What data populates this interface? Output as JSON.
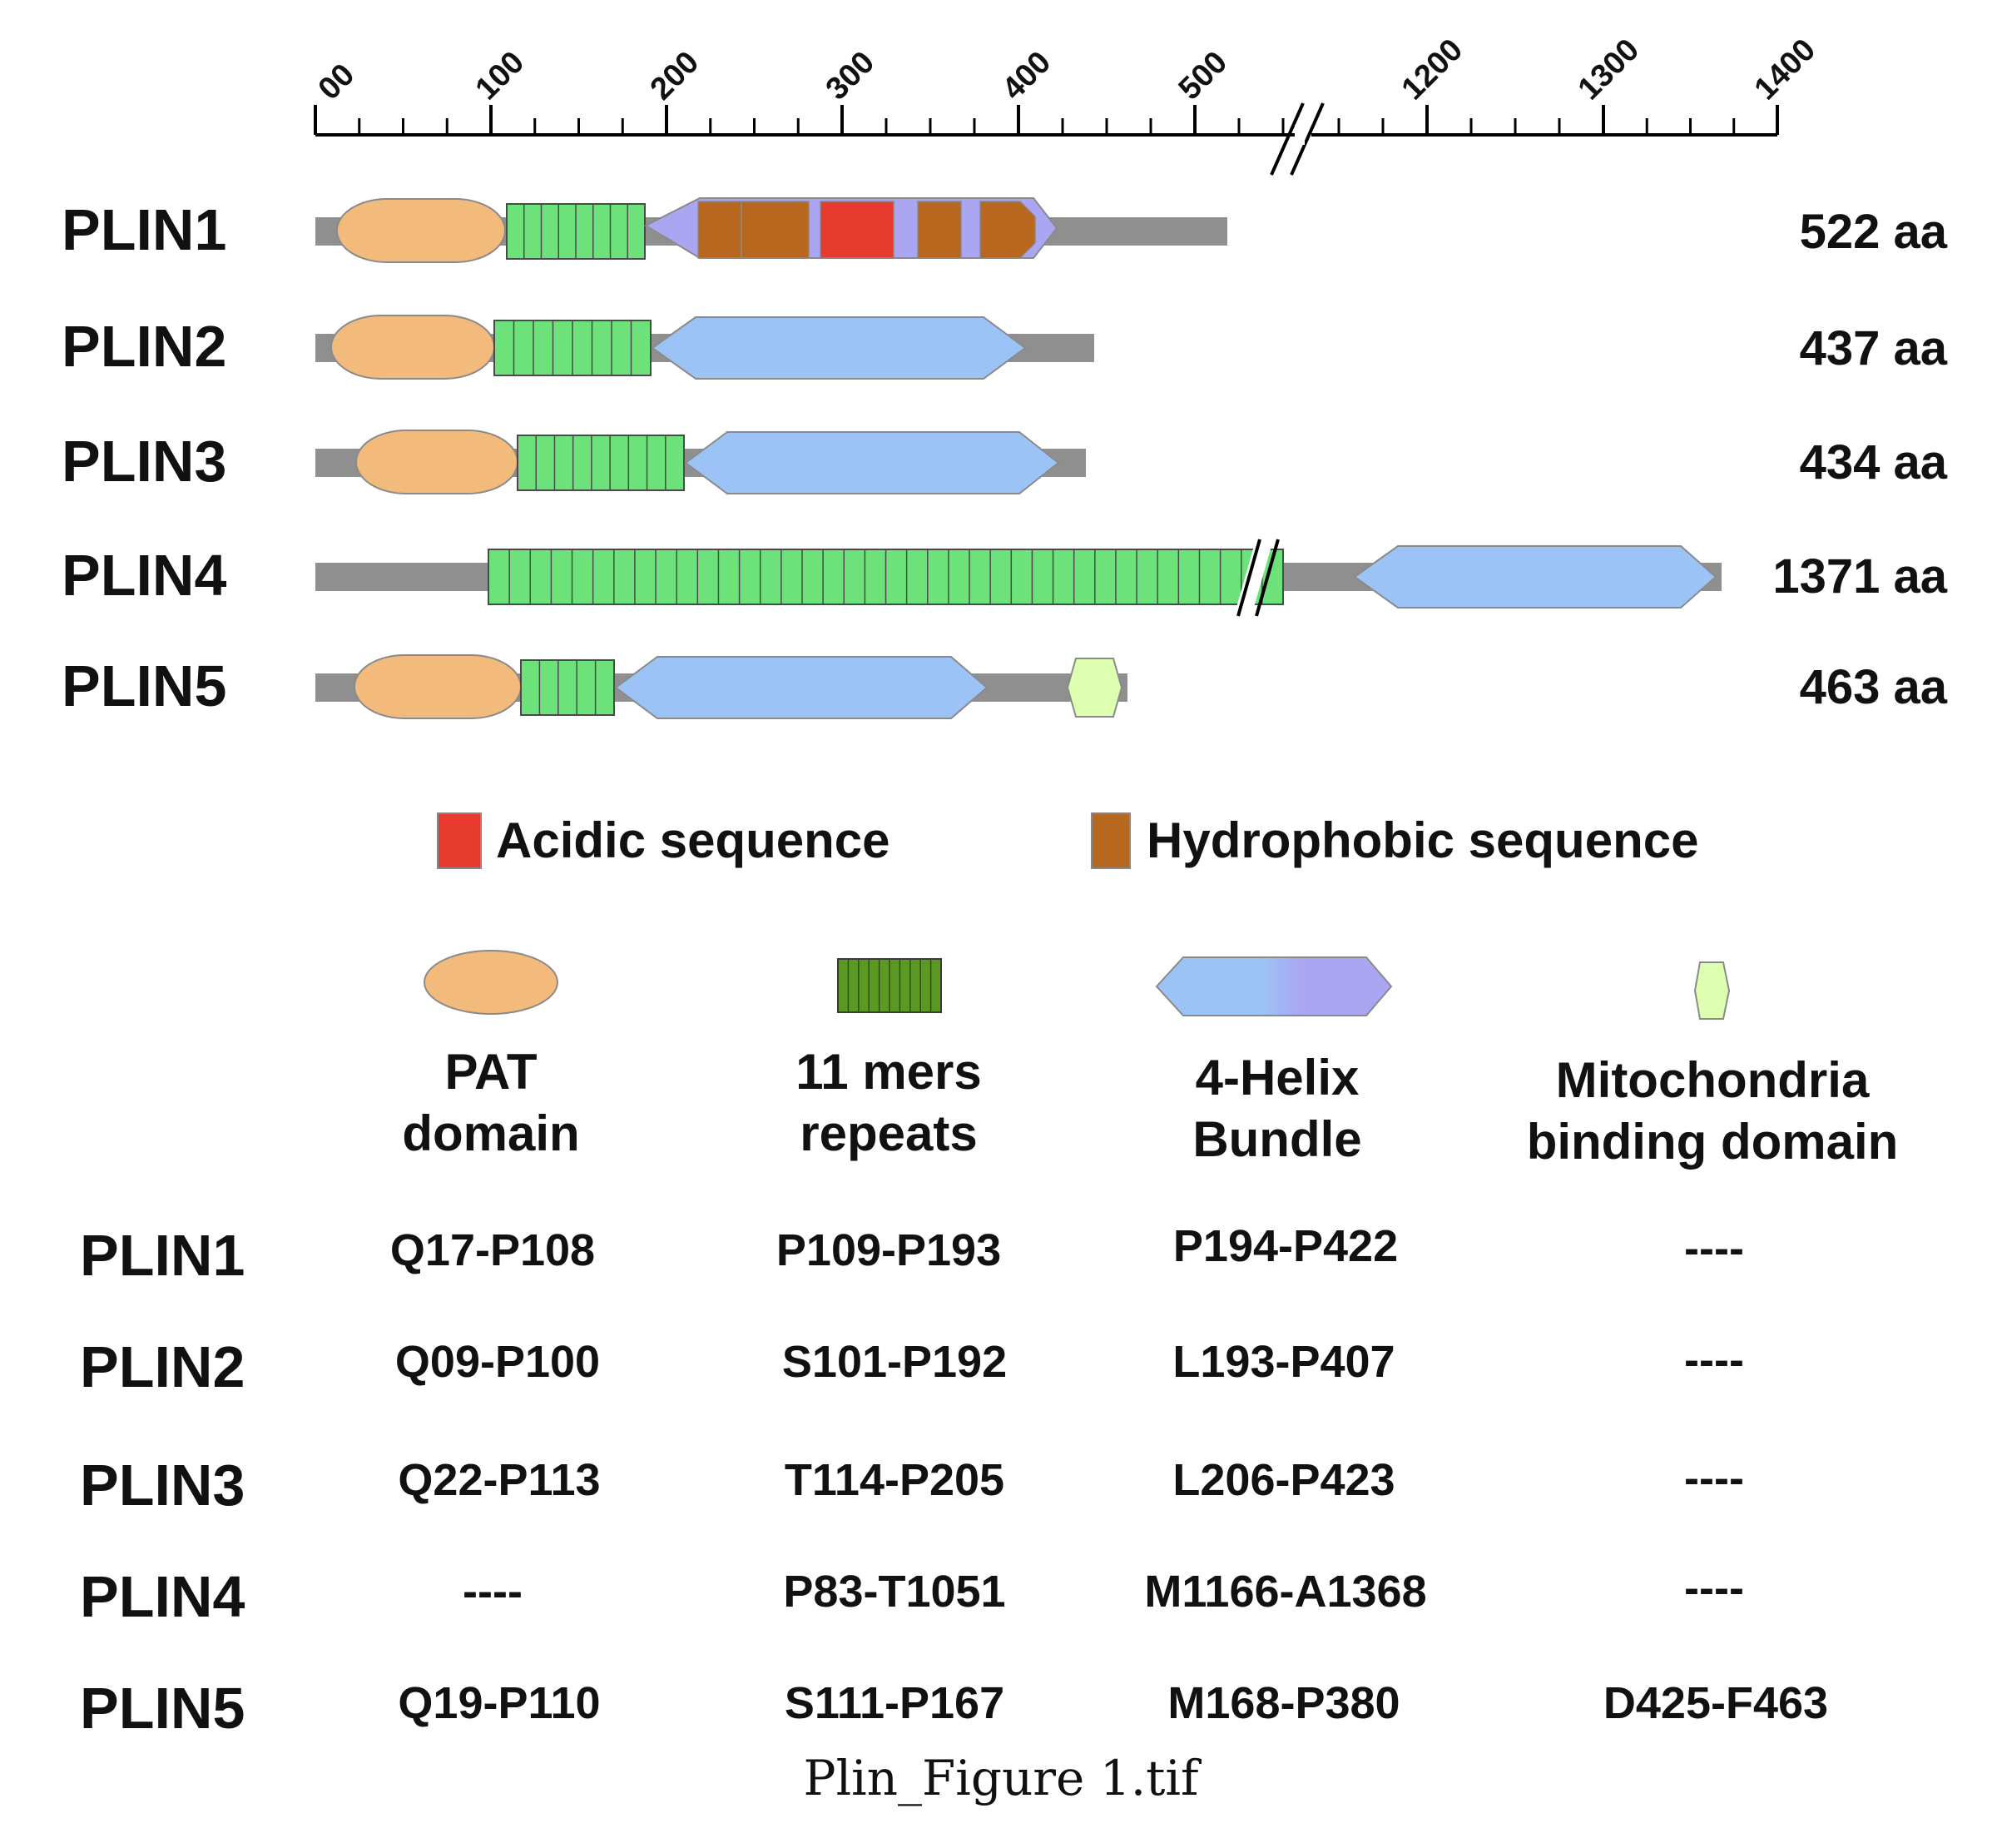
{
  "axis": {
    "ticks_left": [
      "00",
      "100",
      "200",
      "300",
      "400",
      "500"
    ],
    "ticks_right": [
      "1200",
      "1300",
      "1400"
    ]
  },
  "proteins": [
    {
      "name": "PLIN1",
      "length_label": "522 aa",
      "length": 522
    },
    {
      "name": "PLIN2",
      "length_label": "437 aa",
      "length": 437
    },
    {
      "name": "PLIN3",
      "length_label": "434 aa",
      "length": 434
    },
    {
      "name": "PLIN4",
      "length_label": "1371 aa",
      "length": 1371
    },
    {
      "name": "PLIN5",
      "length_label": "463 aa",
      "length": 463
    }
  ],
  "legend_top": [
    {
      "label": "Acidic sequence",
      "color": "#e63b2e"
    },
    {
      "label": "Hydrophobic sequence",
      "color": "#b8671f"
    }
  ],
  "legend_domains": [
    {
      "line1": "PAT",
      "line2": "domain",
      "color": "#f2bb7c",
      "icon": "pat-ellipse-icon"
    },
    {
      "line1": "11 mers",
      "line2": "repeats",
      "color": "#5a9a22",
      "icon": "repeats-block-icon"
    },
    {
      "line1": "4-Helix",
      "line2": "Bundle",
      "color": "#9cc3f5",
      "color2": "#a9a3f5",
      "icon": "helix-hexagon-icon"
    },
    {
      "line1": "Mitochondria",
      "line2": "binding domain",
      "color": "#ddffb0",
      "icon": "mito-hexagon-icon"
    }
  ],
  "table": {
    "rows": [
      {
        "name": "PLIN1",
        "pat": "Q17-P108",
        "mers": "P109-P193",
        "helix": "P194-P422",
        "mito": "----"
      },
      {
        "name": "PLIN2",
        "pat": "Q09-P100",
        "mers": "S101-P192",
        "helix": "L193-P407",
        "mito": "----"
      },
      {
        "name": "PLIN3",
        "pat": "Q22-P113",
        "mers": "T114-P205",
        "helix": "L206-P423",
        "mito": "----"
      },
      {
        "name": "PLIN4",
        "pat": "----",
        "mers": "P83-T1051",
        "helix": "M1166-A1368",
        "mito": "----"
      },
      {
        "name": "PLIN5",
        "pat": "Q19-P110",
        "mers": "S111-P167",
        "helix": "M168-P380",
        "mito": "D425-F463"
      }
    ]
  },
  "caption": "Plin_Figure 1.tif",
  "colors": {
    "backbone": "#8f8f8f",
    "pat": "#f2bb7c",
    "repeats": "#6ee27a",
    "helix": "#9cc3f5",
    "helix_alt": "#aaa6f2",
    "acidic": "#e63b2e",
    "hydrophobic": "#b8671f",
    "mito": "#ddffb0"
  }
}
